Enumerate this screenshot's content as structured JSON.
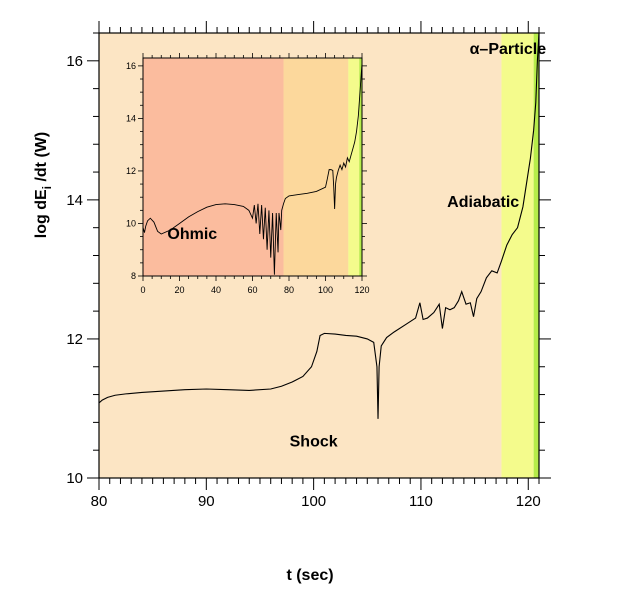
{
  "chart_data": [
    {
      "type": "line",
      "name": "main",
      "xlabel": "t (sec)",
      "ylabel_main": "log dE",
      "ylabel_sub": "i",
      "ylabel_rest": " /dt (W)",
      "xlim": [
        80,
        121
      ],
      "ylim": [
        10,
        16.4
      ],
      "xticks": [
        80,
        90,
        100,
        110,
        120
      ],
      "yticks": [
        10,
        12,
        14,
        16
      ],
      "regions": [
        {
          "name": "Shock",
          "x0": 80,
          "x1": 117.5,
          "color": "#fce5c4"
        },
        {
          "name": "Adiabatic",
          "x0": 117.5,
          "x1": 120.5,
          "color": "#f4fb8c"
        },
        {
          "name": "alpha-particle",
          "x0": 120.5,
          "x1": 121,
          "color": "#b6ec4a"
        }
      ],
      "region_labels": [
        {
          "text": "Shock",
          "x": 100,
          "y": 10.45
        },
        {
          "text": "Adiabatic",
          "x": 115.8,
          "y": 13.9
        },
        {
          "text": "α–Particle",
          "x": 118.1,
          "y": 16.1
        }
      ],
      "series": [
        {
          "name": "dEi/dt",
          "x": [
            80,
            80.3,
            80.8,
            81.5,
            82.5,
            84,
            86,
            88,
            90,
            92,
            94,
            96,
            97,
            98,
            99,
            99.8,
            100.3,
            100.6,
            101,
            102,
            103,
            104,
            105,
            105.6,
            105.9,
            106.0,
            106.1,
            106.3,
            106.8,
            107.5,
            108.5,
            109.5,
            109.9,
            110.2,
            110.6,
            111.2,
            111.7,
            112.0,
            112.3,
            112.7,
            113.1,
            113.5,
            113.8,
            114.2,
            114.6,
            114.9,
            115.2,
            115.6,
            116.1,
            116.6,
            117.1,
            117.5,
            118,
            118.5,
            119,
            119.5,
            119.9,
            120.2,
            120.5,
            120.7,
            120.85,
            121
          ],
          "y": [
            11.08,
            11.12,
            11.16,
            11.19,
            11.21,
            11.23,
            11.25,
            11.27,
            11.28,
            11.27,
            11.26,
            11.28,
            11.32,
            11.38,
            11.46,
            11.6,
            11.82,
            12.05,
            12.08,
            12.07,
            12.05,
            12.04,
            12.0,
            11.95,
            11.6,
            10.85,
            11.6,
            11.9,
            12.02,
            12.1,
            12.2,
            12.3,
            12.52,
            12.28,
            12.3,
            12.38,
            12.5,
            12.15,
            12.45,
            12.42,
            12.45,
            12.55,
            12.68,
            12.5,
            12.52,
            12.32,
            12.58,
            12.68,
            12.88,
            12.98,
            12.95,
            13.12,
            13.35,
            13.5,
            13.6,
            13.9,
            14.3,
            14.6,
            15.0,
            15.4,
            16.0,
            16.4
          ]
        }
      ]
    },
    {
      "type": "line",
      "name": "inset",
      "xlim": [
        0,
        120
      ],
      "ylim": [
        8,
        16.3
      ],
      "xticks": [
        0,
        20,
        40,
        60,
        80,
        100,
        120
      ],
      "yticks": [
        8,
        10,
        12,
        14,
        16
      ],
      "regions": [
        {
          "name": "Ohmic",
          "x0": 0,
          "x1": 77,
          "color": "#fbbc9e"
        },
        {
          "name": "Shock",
          "x0": 77,
          "x1": 112.5,
          "color": "#fcd89c"
        },
        {
          "name": "Adiabatic",
          "x0": 112.5,
          "x1": 118.5,
          "color": "#f4fb8c"
        },
        {
          "name": "alpha-particle",
          "x0": 118.5,
          "x1": 120,
          "color": "#b6ec4a"
        }
      ],
      "region_labels": [
        {
          "text": "Ohmic",
          "x": 27,
          "y": 9.4
        }
      ],
      "series": [
        {
          "name": "dEi/dt",
          "x": [
            0,
            0.8,
            1.5,
            2.5,
            4,
            6,
            8,
            10,
            15,
            20,
            25,
            30,
            35,
            40,
            45,
            50,
            55,
            58,
            60,
            61,
            62,
            63,
            64,
            65,
            66,
            67,
            68,
            69,
            70,
            71,
            72,
            73,
            74,
            74.5,
            75,
            75.5,
            76,
            77,
            78,
            80,
            85,
            90,
            95,
            100,
            101,
            102,
            103,
            104,
            104.5,
            105,
            105.5,
            106,
            107,
            108,
            109,
            110,
            111,
            112,
            113,
            114,
            115,
            116,
            117,
            118,
            119,
            120
          ],
          "y": [
            9.85,
            9.65,
            9.9,
            10.1,
            10.2,
            10.05,
            9.7,
            9.6,
            9.75,
            10.0,
            10.25,
            10.45,
            10.62,
            10.72,
            10.75,
            10.72,
            10.65,
            10.5,
            10.2,
            10.7,
            10.0,
            10.75,
            9.6,
            10.7,
            9.4,
            10.6,
            9.0,
            10.5,
            8.7,
            10.4,
            8.05,
            10.4,
            8.9,
            10.4,
            10.1,
            9.75,
            10.5,
            10.75,
            10.95,
            11.05,
            11.1,
            11.15,
            11.22,
            11.38,
            11.7,
            12.05,
            12.05,
            12.02,
            11.4,
            10.55,
            11.5,
            11.75,
            12.02,
            12.22,
            12.05,
            12.3,
            12.15,
            12.5,
            12.35,
            12.6,
            12.85,
            13.1,
            13.5,
            14.1,
            15.1,
            16.1
          ]
        }
      ]
    }
  ]
}
